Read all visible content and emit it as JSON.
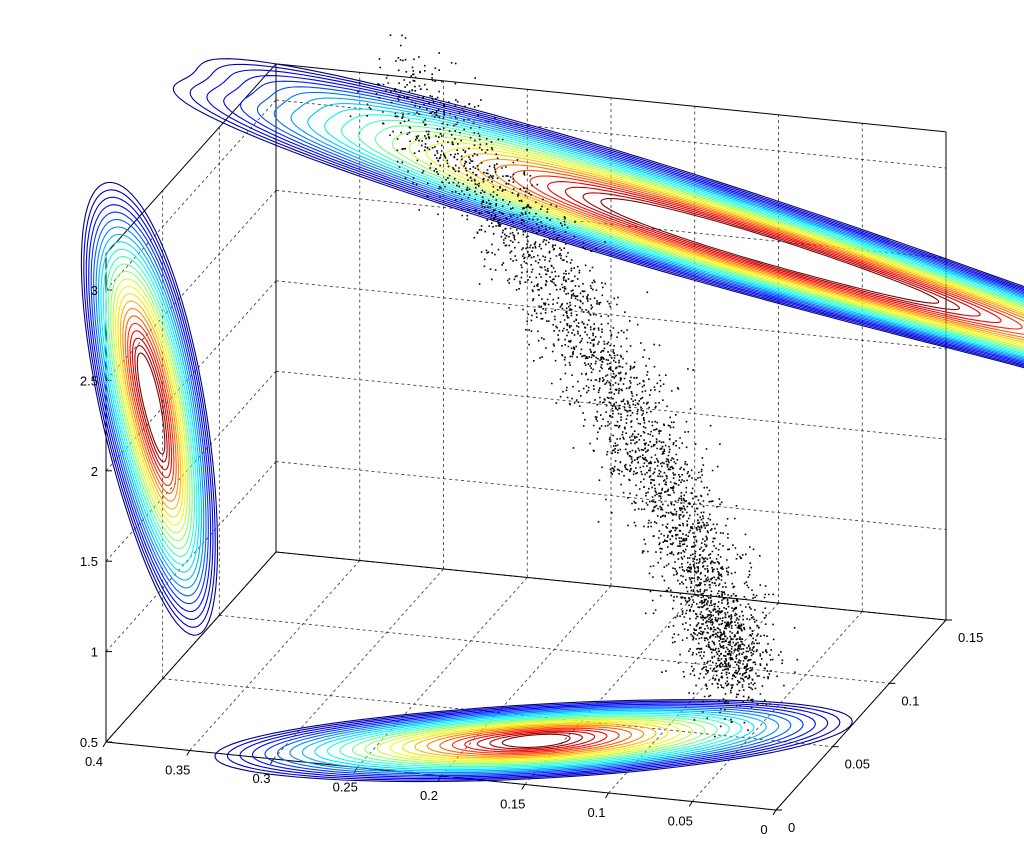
{
  "chart_data": {
    "type": "scatter",
    "title": "",
    "xlabel": "",
    "ylabel": "",
    "zlabel": "",
    "view": "3d",
    "grid": true,
    "x_ticks": [
      "0.4",
      "0.35",
      "0.3",
      "0.25",
      "0.2",
      "0.15",
      "0.1",
      "0.05",
      "0"
    ],
    "y_ticks": [
      "0",
      "0.05",
      "0.1",
      "0.15"
    ],
    "z_ticks": [
      "0.5",
      "1",
      "1.5",
      "2",
      "2.5",
      "3"
    ],
    "xlim": [
      0,
      0.4
    ],
    "ylim": [
      0,
      0.15
    ],
    "zlim": [
      0.5,
      3.2
    ],
    "scatter_cloud": {
      "color": "#000000",
      "point_count_approx": 9000,
      "trend": [
        {
          "x": 0.33,
          "y": 0.15,
          "z": 3.2
        },
        {
          "x": 0.22,
          "y": 0.12,
          "z": 2.5
        },
        {
          "x": 0.14,
          "y": 0.09,
          "z": 1.8
        },
        {
          "x": 0.08,
          "y": 0.06,
          "z": 1.2
        },
        {
          "x": 0.05,
          "y": 0.04,
          "z": 0.9
        }
      ]
    },
    "projections": [
      {
        "plane": "floor (x-y)",
        "type": "contour",
        "peaks": [
          {
            "x": 0.19,
            "y": 0.035
          },
          {
            "x": 0.14,
            "y": 0.03
          }
        ]
      },
      {
        "plane": "back wall (x-z)",
        "type": "contour",
        "peaks": [
          {
            "x": 0.16,
            "z": 2.95
          },
          {
            "x": 0.09,
            "z": 2.6
          }
        ]
      },
      {
        "plane": "left wall (y-z)",
        "type": "contour",
        "peaks": [
          {
            "y": 0.05,
            "z": 3.0
          },
          {
            "y": 0.03,
            "z": 2.2
          }
        ]
      }
    ],
    "colormap": [
      "#00008f",
      "#0000ff",
      "#0080ff",
      "#00ffff",
      "#80ff80",
      "#ffff00",
      "#ff8000",
      "#ff0000",
      "#800000"
    ]
  }
}
